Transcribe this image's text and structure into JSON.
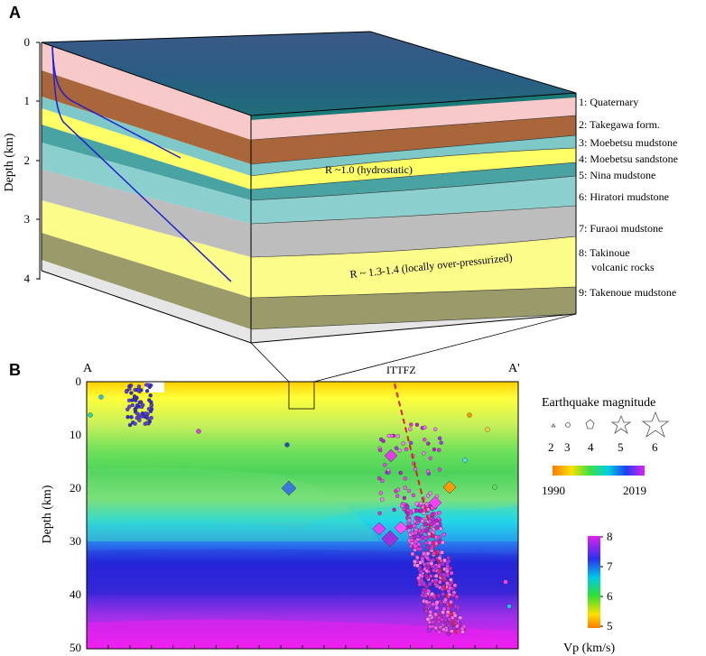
{
  "panel_a": {
    "label": "A",
    "ylabel": "Depth (km)",
    "ticks": [
      "0",
      "1",
      "2",
      "3",
      "4"
    ],
    "layers": [
      {
        "label": "1: Quaternary",
        "color": "#f7c9c9"
      },
      {
        "label": "2: Takegawa form.",
        "color": "#a8663a"
      },
      {
        "label": "3: Moebetsu mudstone",
        "color": "#7ec8c8"
      },
      {
        "label": "4: Moebetsu sandstone",
        "color": "#ffff66"
      },
      {
        "label": "5: Nina mudstone",
        "color": "#4aa3a3"
      },
      {
        "label": "6: Hiratori mudstone",
        "color": "#8ccfcf"
      },
      {
        "label": "7: Furaoi mudstone",
        "color": "#bdbdbd"
      },
      {
        "label": "8: Takinoue",
        "label2": "volcanic rocks",
        "color": "#fcfc8a"
      },
      {
        "label": "9: Takenoue mudstone",
        "color": "#9a9a6a"
      }
    ],
    "annotation_hydro": "R ~1.0 (hydrostatic)",
    "annotation_over": "R ~ 1.3-1.4 (locally over-pressurized)"
  },
  "panel_b": {
    "label": "B",
    "ylabel": "Depth (km)",
    "ticks": [
      "0",
      "10",
      "20",
      "30",
      "40",
      "50"
    ],
    "left_end": "A",
    "right_end": "A'",
    "fault_label": "ITTFZ",
    "legend": {
      "magnitude_title": "Earthquake magnitude",
      "magnitudes": [
        "2",
        "3",
        "4",
        "5",
        "6"
      ],
      "year_start": "1990",
      "year_end": "2019",
      "vp_title": "Vp (km/s)",
      "vp_ticks": [
        "8",
        "7",
        "6",
        "5"
      ]
    }
  }
}
